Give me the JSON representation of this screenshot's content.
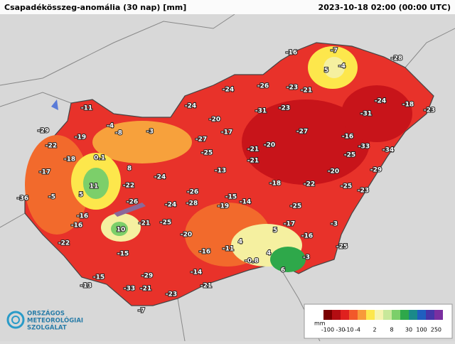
{
  "header": {
    "title": "Csapadékösszeg-anomália (30 nap) [mm]",
    "timestamp": "2023-10-18 02:00 (00:00 UTC)"
  },
  "stations": [
    -16,
    -7,
    -28,
    5,
    -4,
    -24,
    -26,
    -23,
    -21,
    -24,
    -18,
    -23,
    -11,
    -24,
    -31,
    -23,
    -31,
    -20,
    -4,
    -8,
    -3,
    -17,
    -27,
    -29,
    -19,
    -27,
    -16,
    -22,
    -20,
    -33,
    -34,
    -25,
    -21,
    -25,
    -18,
    0.1,
    -21,
    -17,
    8,
    -13,
    -20,
    -29,
    -24,
    11,
    -22,
    -18,
    -22,
    -25,
    -23,
    -36,
    -5,
    5,
    -26,
    -15,
    -26,
    -28,
    -24,
    -14,
    -19,
    -25,
    -16,
    -17,
    -16,
    10,
    -21,
    -25,
    -3,
    5,
    -20,
    -16,
    -22,
    4,
    -11,
    -16,
    4,
    -25,
    -15,
    -0.8,
    -3,
    -14,
    6,
    -29,
    -15,
    -13,
    -21,
    -33,
    -21,
    -23,
    -7
  ],
  "legend": {
    "unit": "mm",
    "labels": [
      -100,
      -30,
      -10,
      -4,
      2,
      8,
      30,
      100,
      250
    ]
  },
  "logo": {
    "line1": "ORSZÁGOS",
    "line2": "METEOROLÓGIAI",
    "line3": "SZOLGÁLAT"
  }
}
